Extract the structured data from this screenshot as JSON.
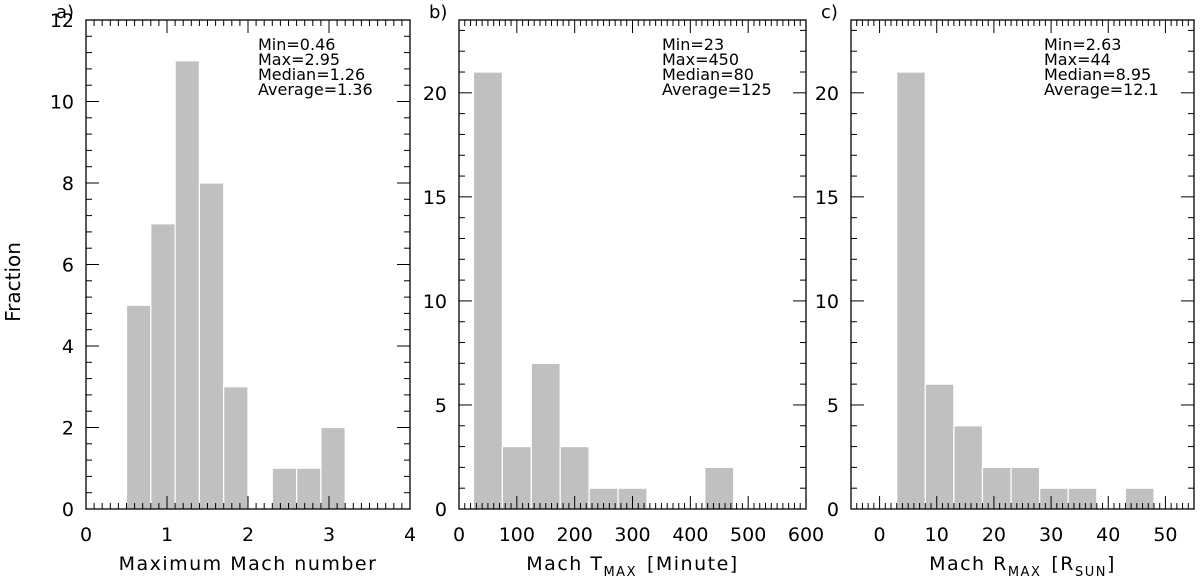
{
  "ylabel": "Fraction",
  "colors": {
    "bar": "#c0c0c0",
    "bar_edge": "#ffffff",
    "axis": "#000000"
  },
  "chart_data": [
    {
      "type": "bar",
      "panel_letter": "a)",
      "xlabel": "Maximum Mach number",
      "xlim": [
        0,
        4
      ],
      "ylim": [
        0,
        12
      ],
      "x_ticks": [
        "0",
        "1",
        "2",
        "3",
        "4"
      ],
      "y_ticks": [
        "0",
        "2",
        "4",
        "6",
        "8",
        "10",
        "12"
      ],
      "bin_width": 0.3,
      "bin_left_edges": [
        0.5,
        0.8,
        1.1,
        1.4,
        1.7,
        2.0,
        2.3,
        2.6,
        2.9
      ],
      "values": [
        5,
        7,
        11,
        8,
        3,
        0,
        1,
        1,
        2
      ],
      "stats": [
        "Min=0.46",
        "Max=2.95",
        "Median=1.26",
        "Average=1.36"
      ]
    },
    {
      "type": "bar",
      "panel_letter": "b)",
      "xlabel_main": "Mach T",
      "xlabel_sub": "MAX",
      "xlabel_tail": "[Minute]",
      "xlim": [
        0,
        600
      ],
      "ylim": [
        0,
        23.5
      ],
      "x_ticks": [
        "0",
        "100",
        "200",
        "300",
        "400",
        "500",
        "600"
      ],
      "y_ticks": [
        "0",
        "5",
        "10",
        "15",
        "20"
      ],
      "bin_width": 50,
      "bin_left_edges": [
        25,
        75,
        125,
        175,
        225,
        275,
        325,
        375,
        425
      ],
      "values": [
        21,
        3,
        7,
        3,
        1,
        1,
        0,
        0,
        2
      ],
      "stats": [
        "Min=23",
        "Max=450",
        "Median=80",
        "Average=125"
      ]
    },
    {
      "type": "bar",
      "panel_letter": "c)",
      "xlabel_main": "Mach R",
      "xlabel_sub": "MAX",
      "xlabel_tail_open": "[R",
      "xlabel_tail_sub": "SUN",
      "xlabel_tail_close": "]",
      "xlim": [
        -5,
        55
      ],
      "ylim": [
        0,
        23.5
      ],
      "x_ticks": [
        "0",
        "10",
        "20",
        "30",
        "40",
        "50"
      ],
      "y_ticks": [
        "0",
        "5",
        "10",
        "15",
        "20"
      ],
      "bin_width": 5,
      "bin_left_edges": [
        3,
        8,
        13,
        18,
        23,
        28,
        33,
        38,
        43
      ],
      "values": [
        21,
        6,
        4,
        2,
        2,
        1,
        1,
        0,
        1
      ],
      "stats": [
        "Min=2.63",
        "Max=44",
        "Median=8.95",
        "Average=12.1"
      ]
    }
  ]
}
